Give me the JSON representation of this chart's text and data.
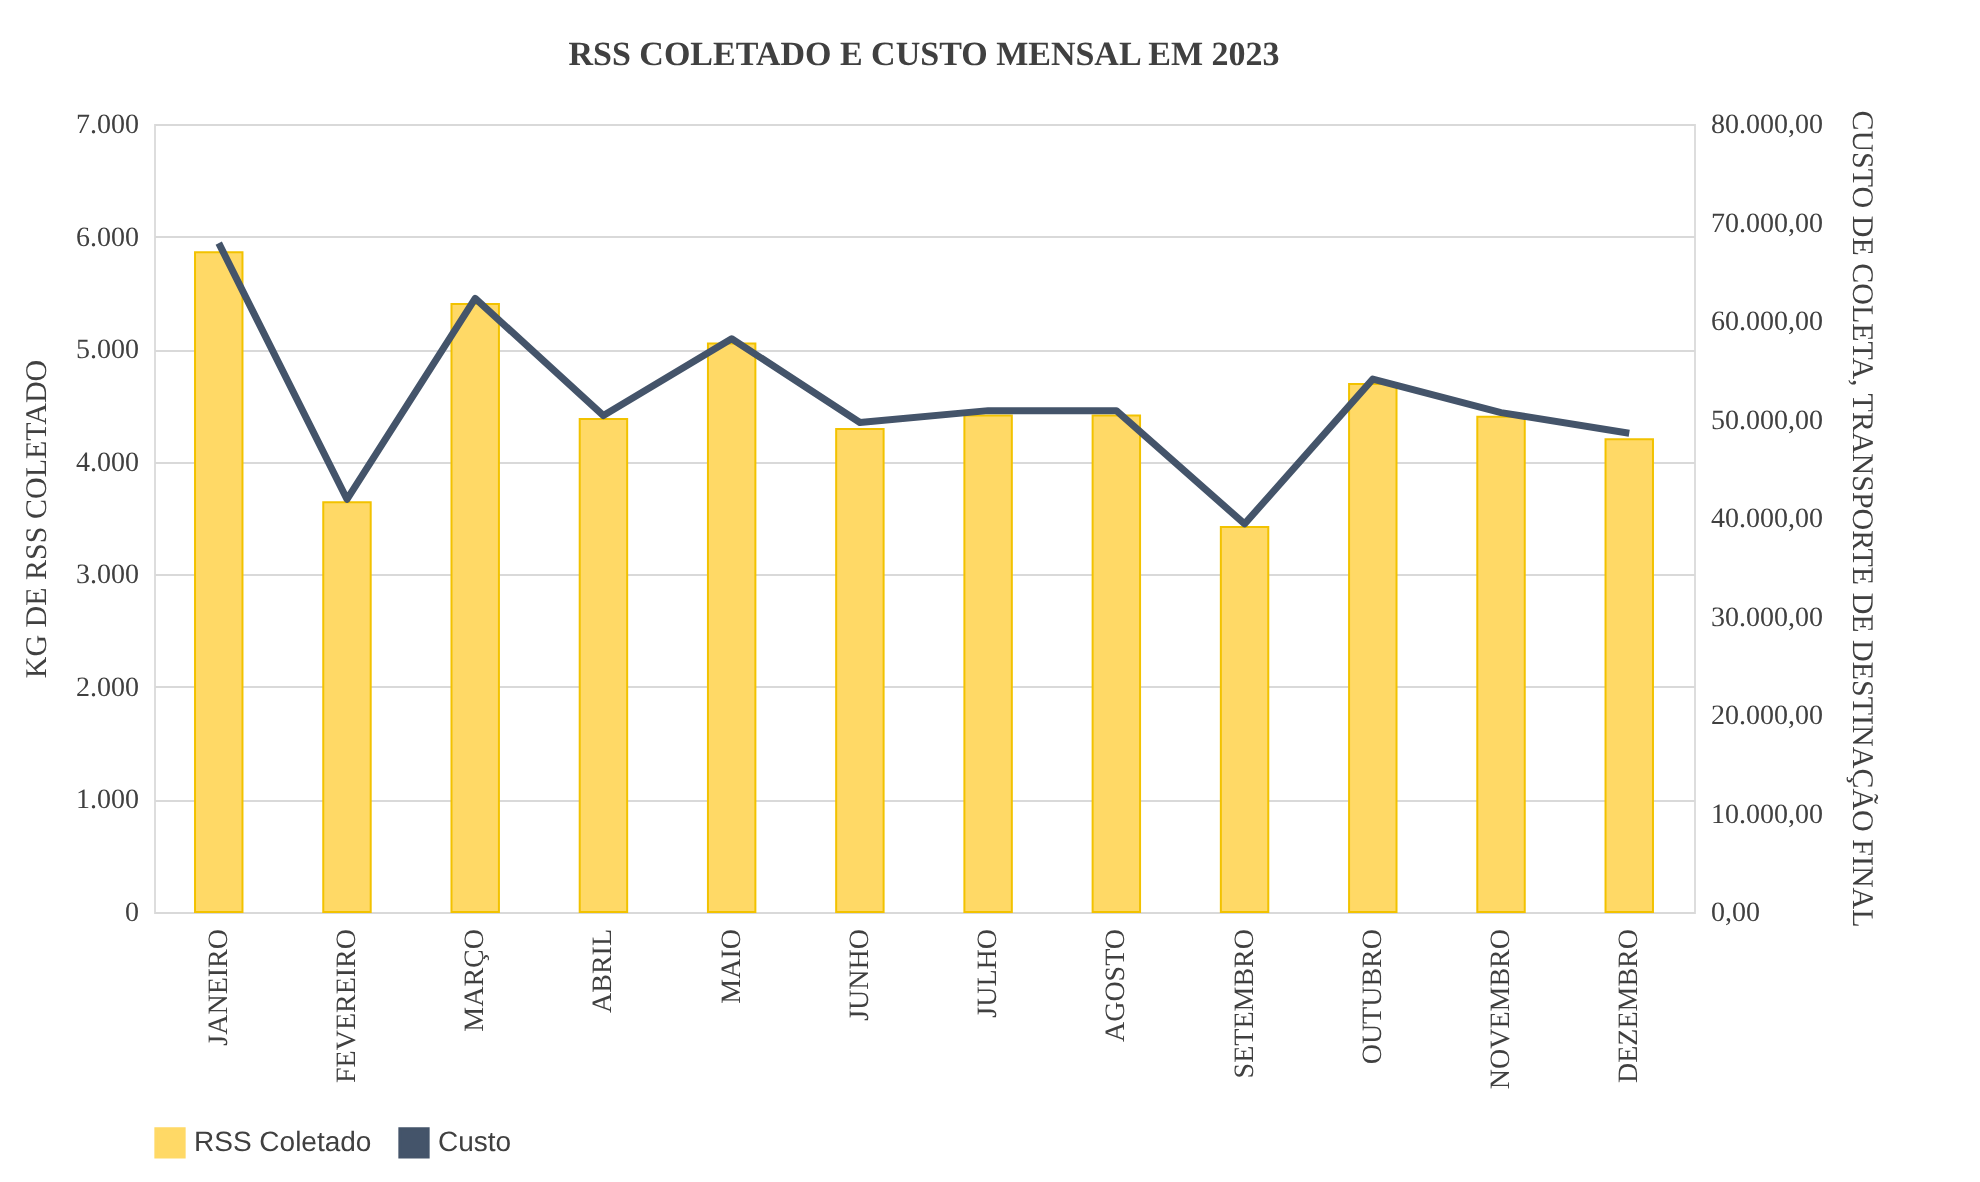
{
  "chart_data": {
    "type": "bar",
    "title": "RSS COLETADO E CUSTO MENSAL EM 2023",
    "categories": [
      "JANEIRO",
      "FEVEREIRO",
      "MARÇO",
      "ABRIL",
      "MAIO",
      "JUNHO",
      "JULHO",
      "AGOSTO",
      "SETEMBRO",
      "OUTUBRO",
      "NOVEMBRO",
      "DEZEMBRO"
    ],
    "ylabel": "KG  DE RSS COLETADO",
    "y2label": "CUSTO DE COLETA, TRANSPORTE DE DESTINAÇÃO FINAL",
    "series": [
      {
        "name": "RSS Coletado",
        "color": "#ffd966",
        "values": [
          5860,
          3640,
          5400,
          4380,
          5050,
          4290,
          4410,
          4410,
          3420,
          4690,
          4400,
          4200
        ]
      },
      {
        "name": "Custo",
        "type": "line",
        "axis": "y2",
        "color": "#44546a",
        "values": [
          67900,
          41900,
          62300,
          50400,
          58200,
          49700,
          50900,
          50900,
          39400,
          54100,
          50700,
          48600
        ]
      }
    ],
    "ylim": [
      0,
      7000
    ],
    "yticks": [
      {
        "value": 0,
        "label": "0"
      },
      {
        "value": 1000,
        "label": "1.000"
      },
      {
        "value": 2000,
        "label": "2.000"
      },
      {
        "value": 3000,
        "label": "3.000"
      },
      {
        "value": 4000,
        "label": "4.000"
      },
      {
        "value": 5000,
        "label": "5.000"
      },
      {
        "value": 6000,
        "label": "6.000"
      },
      {
        "value": 7000,
        "label": "7.000"
      }
    ],
    "y2lim": [
      0,
      80000
    ],
    "y2ticks": [
      {
        "value": 0,
        "label": "0,00"
      },
      {
        "value": 10000,
        "label": "10.000,00"
      },
      {
        "value": 20000,
        "label": "20.000,00"
      },
      {
        "value": 30000,
        "label": "30.000,00"
      },
      {
        "value": 40000,
        "label": "40.000,00"
      },
      {
        "value": 50000,
        "label": "50.000,00"
      },
      {
        "value": 60000,
        "label": "60.000,00"
      },
      {
        "value": 70000,
        "label": "70.000,00"
      },
      {
        "value": 80000,
        "label": "80.000,00"
      }
    ],
    "grid": "y",
    "legend": "bottom",
    "marker": "none",
    "line_style": "solid"
  }
}
